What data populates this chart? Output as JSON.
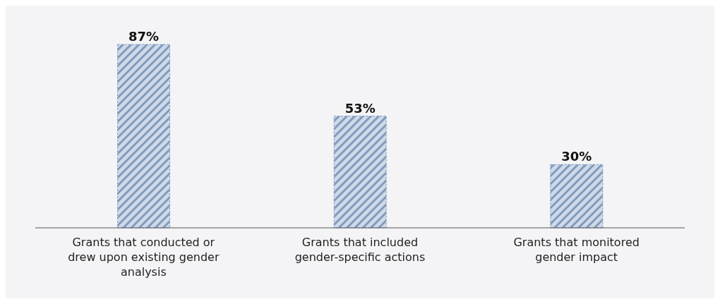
{
  "chart_data": {
    "type": "bar",
    "categories": [
      "Grants that conducted or drew upon existing gender analysis",
      "Grants that included gender-specific actions",
      "Grants that monitored gender impact"
    ],
    "values": [
      87,
      53,
      30
    ],
    "value_labels": [
      "87%",
      "53%",
      "30%"
    ],
    "color": "#7f9bc0",
    "grid": false,
    "legend": false
  }
}
